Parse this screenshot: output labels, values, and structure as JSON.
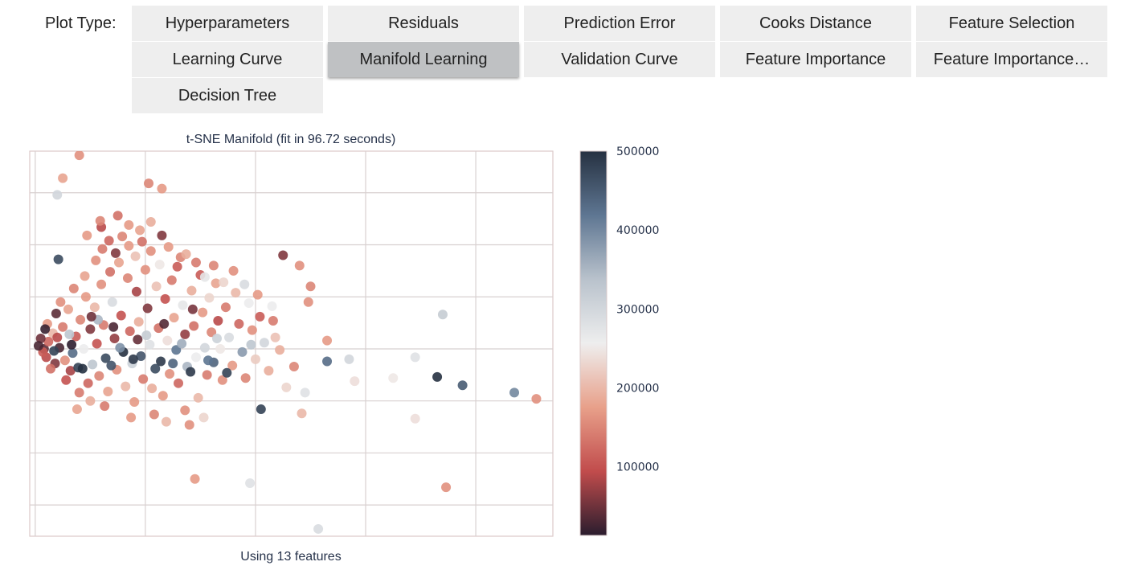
{
  "toolbar": {
    "label": "Plot Type:",
    "options": [
      "Hyperparameters",
      "Residuals",
      "Prediction Error",
      "Cooks Distance",
      "Feature Selection",
      "Learning Curve",
      "Manifold Learning",
      "Validation Curve",
      "Feature Importance",
      "Feature Importance…",
      "Decision Tree"
    ],
    "selected": "Manifold Learning"
  },
  "chart_data": {
    "type": "scatter",
    "title": "t-SNE Manifold (fit in 96.72 seconds)",
    "xlabel": "Using 13 features",
    "ylabel": "",
    "grid": true,
    "axis_tick_labels_shown": false,
    "xlim": [
      -10.5,
      37
    ],
    "ylim": [
      -23,
      14
    ],
    "colorbar": {
      "ticks": [
        100000,
        200000,
        300000,
        400000,
        500000
      ],
      "range": [
        13000,
        500000
      ],
      "colors": [
        "#2a1d2e",
        "#c14c4c",
        "#e8a08a",
        "#eeeeee",
        "#b9c2cc",
        "#5e7692",
        "#263141"
      ]
    },
    "points": [
      {
        "x": -6,
        "y": 13.6,
        "v": 160000
      },
      {
        "x": -7.5,
        "y": 11.4,
        "v": 180000
      },
      {
        "x": -8,
        "y": 9.8,
        "v": 300000
      },
      {
        "x": 0.3,
        "y": 10.9,
        "v": 150000
      },
      {
        "x": 1.5,
        "y": 10.4,
        "v": 170000
      },
      {
        "x": -4,
        "y": 6.7,
        "v": 90000
      },
      {
        "x": -1.5,
        "y": 6.9,
        "v": 170000
      },
      {
        "x": 0.5,
        "y": 7.2,
        "v": 190000
      },
      {
        "x": 1.5,
        "y": 5.9,
        "v": 60000
      },
      {
        "x": 12.5,
        "y": 4.0,
        "v": 60000
      },
      {
        "x": 14,
        "y": 3.0,
        "v": 160000
      },
      {
        "x": 15,
        "y": 1.0,
        "v": 150000
      },
      {
        "x": 14.8,
        "y": -0.5,
        "v": 160000
      },
      {
        "x": 27,
        "y": -1.7,
        "v": 320000
      },
      {
        "x": 33.5,
        "y": -9.2,
        "v": 400000
      },
      {
        "x": 35.5,
        "y": -9.8,
        "v": 160000
      },
      {
        "x": 28.8,
        "y": -8.5,
        "v": 450000
      },
      {
        "x": 26.5,
        "y": -7.7,
        "v": 500000
      },
      {
        "x": 24.5,
        "y": -5.8,
        "v": 280000
      },
      {
        "x": 22.5,
        "y": -7.8,
        "v": 250000
      },
      {
        "x": 24.5,
        "y": -11.7,
        "v": 240000
      },
      {
        "x": 27.3,
        "y": -18.3,
        "v": 160000
      },
      {
        "x": 4.5,
        "y": -17.5,
        "v": 170000
      },
      {
        "x": 9.5,
        "y": -17.9,
        "v": 280000
      },
      {
        "x": 10.5,
        "y": -10.8,
        "v": 480000
      },
      {
        "x": 14.5,
        "y": -9.2,
        "v": 280000
      },
      {
        "x": 14.2,
        "y": -11.2,
        "v": 200000
      },
      {
        "x": 16.5,
        "y": -6.2,
        "v": 430000
      },
      {
        "x": 16.5,
        "y": -4.2,
        "v": 170000
      },
      {
        "x": 15.7,
        "y": -22.3,
        "v": 290000
      },
      {
        "x": 18.5,
        "y": -6.0,
        "v": 300000
      },
      {
        "x": 19.0,
        "y": -8.1,
        "v": 240000
      },
      {
        "x": 12.2,
        "y": -5.1,
        "v": 190000
      },
      {
        "x": 11.8,
        "y": -3.9,
        "v": 210000
      },
      {
        "x": 13.5,
        "y": -6.7,
        "v": 150000
      },
      {
        "x": 12.8,
        "y": -8.7,
        "v": 230000
      },
      {
        "x": -9.2,
        "y": -5.0,
        "v": 40000
      },
      {
        "x": -8.8,
        "y": -4.3,
        "v": 120000
      },
      {
        "x": -9.0,
        "y": -5.8,
        "v": 90000
      },
      {
        "x": -8.4,
        "y": -3.5,
        "v": 200000
      },
      {
        "x": -8.2,
        "y": -6.4,
        "v": 60000
      },
      {
        "x": -7.8,
        "y": -4.9,
        "v": 30000
      },
      {
        "x": -7.5,
        "y": -2.9,
        "v": 140000
      },
      {
        "x": -7.3,
        "y": -6.1,
        "v": 160000
      },
      {
        "x": -7.0,
        "y": -1.2,
        "v": 180000
      },
      {
        "x": -6.8,
        "y": -7.1,
        "v": 80000
      },
      {
        "x": -6.6,
        "y": -5.4,
        "v": 430000
      },
      {
        "x": -6.3,
        "y": -3.8,
        "v": 110000
      },
      {
        "x": -6.1,
        "y": -6.8,
        "v": 480000
      },
      {
        "x": -5.9,
        "y": -2.2,
        "v": 150000
      },
      {
        "x": -5.6,
        "y": -5.0,
        "v": 260000
      },
      {
        "x": -5.4,
        "y": 0.0,
        "v": 170000
      },
      {
        "x": -5.2,
        "y": -8.3,
        "v": 120000
      },
      {
        "x": -5.0,
        "y": -3.1,
        "v": 60000
      },
      {
        "x": -4.8,
        "y": -6.5,
        "v": 330000
      },
      {
        "x": -4.6,
        "y": -1.0,
        "v": 200000
      },
      {
        "x": -4.4,
        "y": -4.5,
        "v": 100000
      },
      {
        "x": -4.2,
        "y": -7.6,
        "v": 150000
      },
      {
        "x": -4.0,
        "y": 1.2,
        "v": 160000
      },
      {
        "x": -3.8,
        "y": -2.7,
        "v": 140000
      },
      {
        "x": -3.6,
        "y": -5.9,
        "v": 470000
      },
      {
        "x": -3.4,
        "y": -9.1,
        "v": 180000
      },
      {
        "x": -3.2,
        "y": 2.4,
        "v": 130000
      },
      {
        "x": -3.0,
        "y": -0.5,
        "v": 290000
      },
      {
        "x": -2.8,
        "y": -4.0,
        "v": 70000
      },
      {
        "x": -2.6,
        "y": -7.0,
        "v": 160000
      },
      {
        "x": -2.4,
        "y": 3.3,
        "v": 180000
      },
      {
        "x": -2.2,
        "y": -1.8,
        "v": 100000
      },
      {
        "x": -2.0,
        "y": -5.3,
        "v": 500000
      },
      {
        "x": -1.8,
        "y": -8.6,
        "v": 200000
      },
      {
        "x": -1.6,
        "y": 1.8,
        "v": 150000
      },
      {
        "x": -1.4,
        "y": -3.3,
        "v": 120000
      },
      {
        "x": -1.2,
        "y": -6.4,
        "v": 310000
      },
      {
        "x": -1.0,
        "y": -10.1,
        "v": 170000
      },
      {
        "x": -0.8,
        "y": 0.5,
        "v": 80000
      },
      {
        "x": -0.6,
        "y": -2.4,
        "v": 190000
      },
      {
        "x": -0.4,
        "y": -5.7,
        "v": 460000
      },
      {
        "x": -0.2,
        "y": -7.9,
        "v": 140000
      },
      {
        "x": 0.0,
        "y": 2.6,
        "v": 160000
      },
      {
        "x": 0.2,
        "y": -1.1,
        "v": 60000
      },
      {
        "x": 0.4,
        "y": -4.6,
        "v": 280000
      },
      {
        "x": 0.6,
        "y": -8.8,
        "v": 190000
      },
      {
        "x": 0.8,
        "y": -11.3,
        "v": 150000
      },
      {
        "x": 1.0,
        "y": 1.0,
        "v": 210000
      },
      {
        "x": 1.2,
        "y": -3.0,
        "v": 130000
      },
      {
        "x": 1.4,
        "y": -6.2,
        "v": 490000
      },
      {
        "x": 1.6,
        "y": -9.5,
        "v": 170000
      },
      {
        "x": 1.8,
        "y": -0.2,
        "v": 100000
      },
      {
        "x": 2.0,
        "y": -4.2,
        "v": 240000
      },
      {
        "x": 2.2,
        "y": -7.4,
        "v": 160000
      },
      {
        "x": 2.4,
        "y": 1.6,
        "v": 140000
      },
      {
        "x": 2.6,
        "y": -2.0,
        "v": 180000
      },
      {
        "x": 2.8,
        "y": -5.1,
        "v": 420000
      },
      {
        "x": 3.0,
        "y": -8.3,
        "v": 120000
      },
      {
        "x": 3.2,
        "y": 3.8,
        "v": 150000
      },
      {
        "x": 3.4,
        "y": -0.8,
        "v": 270000
      },
      {
        "x": 3.6,
        "y": -3.6,
        "v": 70000
      },
      {
        "x": 3.8,
        "y": -6.7,
        "v": 350000
      },
      {
        "x": 4.0,
        "y": -12.3,
        "v": 160000
      },
      {
        "x": 4.2,
        "y": 0.6,
        "v": 190000
      },
      {
        "x": 4.4,
        "y": -2.8,
        "v": 130000
      },
      {
        "x": 4.6,
        "y": -5.8,
        "v": 260000
      },
      {
        "x": 4.8,
        "y": -9.7,
        "v": 200000
      },
      {
        "x": 5.0,
        "y": 2.1,
        "v": 110000
      },
      {
        "x": 5.2,
        "y": -1.5,
        "v": 170000
      },
      {
        "x": 5.4,
        "y": -4.9,
        "v": 300000
      },
      {
        "x": 5.6,
        "y": -7.5,
        "v": 140000
      },
      {
        "x": 5.8,
        "y": -0.1,
        "v": 230000
      },
      {
        "x": 6.0,
        "y": -3.4,
        "v": 150000
      },
      {
        "x": 6.2,
        "y": -6.3,
        "v": 440000
      },
      {
        "x": 6.4,
        "y": 1.3,
        "v": 180000
      },
      {
        "x": 6.6,
        "y": -2.3,
        "v": 90000
      },
      {
        "x": 6.8,
        "y": -5.0,
        "v": 250000
      },
      {
        "x": 7.0,
        "y": -8.0,
        "v": 160000
      },
      {
        "x": 7.3,
        "y": -1.0,
        "v": 140000
      },
      {
        "x": 7.6,
        "y": -3.9,
        "v": 290000
      },
      {
        "x": 7.9,
        "y": -6.6,
        "v": 170000
      },
      {
        "x": 8.2,
        "y": 0.4,
        "v": 200000
      },
      {
        "x": 8.5,
        "y": -2.6,
        "v": 120000
      },
      {
        "x": 8.8,
        "y": -5.3,
        "v": 380000
      },
      {
        "x": 9.1,
        "y": -7.8,
        "v": 150000
      },
      {
        "x": 9.4,
        "y": -0.6,
        "v": 260000
      },
      {
        "x": 9.7,
        "y": -3.2,
        "v": 160000
      },
      {
        "x": 10.0,
        "y": -6.0,
        "v": 220000
      },
      {
        "x": 10.4,
        "y": -1.9,
        "v": 110000
      },
      {
        "x": 10.8,
        "y": -4.4,
        "v": 300000
      },
      {
        "x": 11.2,
        "y": -7.1,
        "v": 190000
      },
      {
        "x": 11.6,
        "y": -2.3,
        "v": 140000
      },
      {
        "x": -9.5,
        "y": -4.0,
        "v": 50000
      },
      {
        "x": -9.3,
        "y": -5.3,
        "v": 110000
      },
      {
        "x": -8.9,
        "y": -2.6,
        "v": 170000
      },
      {
        "x": -8.6,
        "y": -6.9,
        "v": 130000
      },
      {
        "x": -8.0,
        "y": -3.9,
        "v": 90000
      },
      {
        "x": -7.7,
        "y": -0.5,
        "v": 160000
      },
      {
        "x": -7.2,
        "y": -8.0,
        "v": 100000
      },
      {
        "x": -6.5,
        "y": 0.8,
        "v": 150000
      },
      {
        "x": -6.0,
        "y": -9.2,
        "v": 140000
      },
      {
        "x": -5.5,
        "y": 2.0,
        "v": 180000
      },
      {
        "x": -5.0,
        "y": -10.0,
        "v": 190000
      },
      {
        "x": -4.5,
        "y": 3.5,
        "v": 160000
      },
      {
        "x": -3.9,
        "y": 4.6,
        "v": 140000
      },
      {
        "x": -3.3,
        "y": 5.4,
        "v": 120000
      },
      {
        "x": -2.7,
        "y": 4.2,
        "v": 60000
      },
      {
        "x": -2.1,
        "y": 5.8,
        "v": 150000
      },
      {
        "x": -1.5,
        "y": 4.9,
        "v": 170000
      },
      {
        "x": -0.9,
        "y": 3.9,
        "v": 210000
      },
      {
        "x": -0.3,
        "y": 5.3,
        "v": 130000
      },
      {
        "x": 0.5,
        "y": 4.4,
        "v": 160000
      },
      {
        "x": 1.3,
        "y": 3.1,
        "v": 250000
      },
      {
        "x": 2.1,
        "y": 4.8,
        "v": 170000
      },
      {
        "x": 2.9,
        "y": 2.9,
        "v": 110000
      },
      {
        "x": 3.7,
        "y": 4.1,
        "v": 190000
      },
      {
        "x": 4.6,
        "y": 3.3,
        "v": 140000
      },
      {
        "x": 5.4,
        "y": 1.9,
        "v": 270000
      },
      {
        "x": 6.2,
        "y": 3.0,
        "v": 150000
      },
      {
        "x": 7.1,
        "y": 1.4,
        "v": 230000
      },
      {
        "x": 8.0,
        "y": 2.5,
        "v": 160000
      },
      {
        "x": 9.0,
        "y": 1.2,
        "v": 290000
      },
      {
        "x": 10.2,
        "y": 0.2,
        "v": 170000
      },
      {
        "x": 11.5,
        "y": -0.9,
        "v": 260000
      },
      {
        "x": -9.7,
        "y": -4.7,
        "v": 30000
      },
      {
        "x": -8.3,
        "y": -5.2,
        "v": 480000
      },
      {
        "x": -5.7,
        "y": -6.9,
        "v": 500000
      },
      {
        "x": -3.1,
        "y": -6.6,
        "v": 460000
      },
      {
        "x": -1.1,
        "y": -6.0,
        "v": 490000
      },
      {
        "x": 0.9,
        "y": -6.9,
        "v": 470000
      },
      {
        "x": 2.5,
        "y": -6.4,
        "v": 440000
      },
      {
        "x": 4.1,
        "y": -7.2,
        "v": 490000
      },
      {
        "x": 5.7,
        "y": -6.1,
        "v": 420000
      },
      {
        "x": 7.4,
        "y": -7.3,
        "v": 480000
      },
      {
        "x": -7.9,
        "y": 3.6,
        "v": 470000
      },
      {
        "x": -6.9,
        "y": -3.6,
        "v": 330000
      },
      {
        "x": -4.3,
        "y": -2.2,
        "v": 350000
      },
      {
        "x": -2.3,
        "y": -4.9,
        "v": 390000
      },
      {
        "x": 0.1,
        "y": -3.7,
        "v": 320000
      },
      {
        "x": 3.3,
        "y": -4.5,
        "v": 360000
      },
      {
        "x": 6.5,
        "y": -4.0,
        "v": 310000
      },
      {
        "x": 9.6,
        "y": -4.6,
        "v": 330000
      },
      {
        "x": -9.1,
        "y": -3.1,
        "v": 20000
      },
      {
        "x": -8.1,
        "y": -1.6,
        "v": 40000
      },
      {
        "x": -6.7,
        "y": -4.6,
        "v": 15000
      },
      {
        "x": -4.9,
        "y": -1.9,
        "v": 50000
      },
      {
        "x": -2.9,
        "y": -2.9,
        "v": 30000
      },
      {
        "x": -0.7,
        "y": -4.1,
        "v": 45000
      },
      {
        "x": 1.7,
        "y": -2.6,
        "v": 35000
      },
      {
        "x": 4.3,
        "y": -1.2,
        "v": 55000
      },
      {
        "x": -6.2,
        "y": -10.8,
        "v": 180000
      },
      {
        "x": -3.7,
        "y": -10.5,
        "v": 140000
      },
      {
        "x": -1.3,
        "y": -11.6,
        "v": 170000
      },
      {
        "x": 1.9,
        "y": -12.0,
        "v": 200000
      },
      {
        "x": 3.6,
        "y": -10.9,
        "v": 160000
      },
      {
        "x": 5.3,
        "y": -11.6,
        "v": 230000
      },
      {
        "x": -5.3,
        "y": 5.9,
        "v": 170000
      },
      {
        "x": -4.1,
        "y": 7.3,
        "v": 150000
      },
      {
        "x": -2.5,
        "y": 7.8,
        "v": 130000
      },
      {
        "x": -0.5,
        "y": 6.4,
        "v": 180000
      }
    ]
  }
}
